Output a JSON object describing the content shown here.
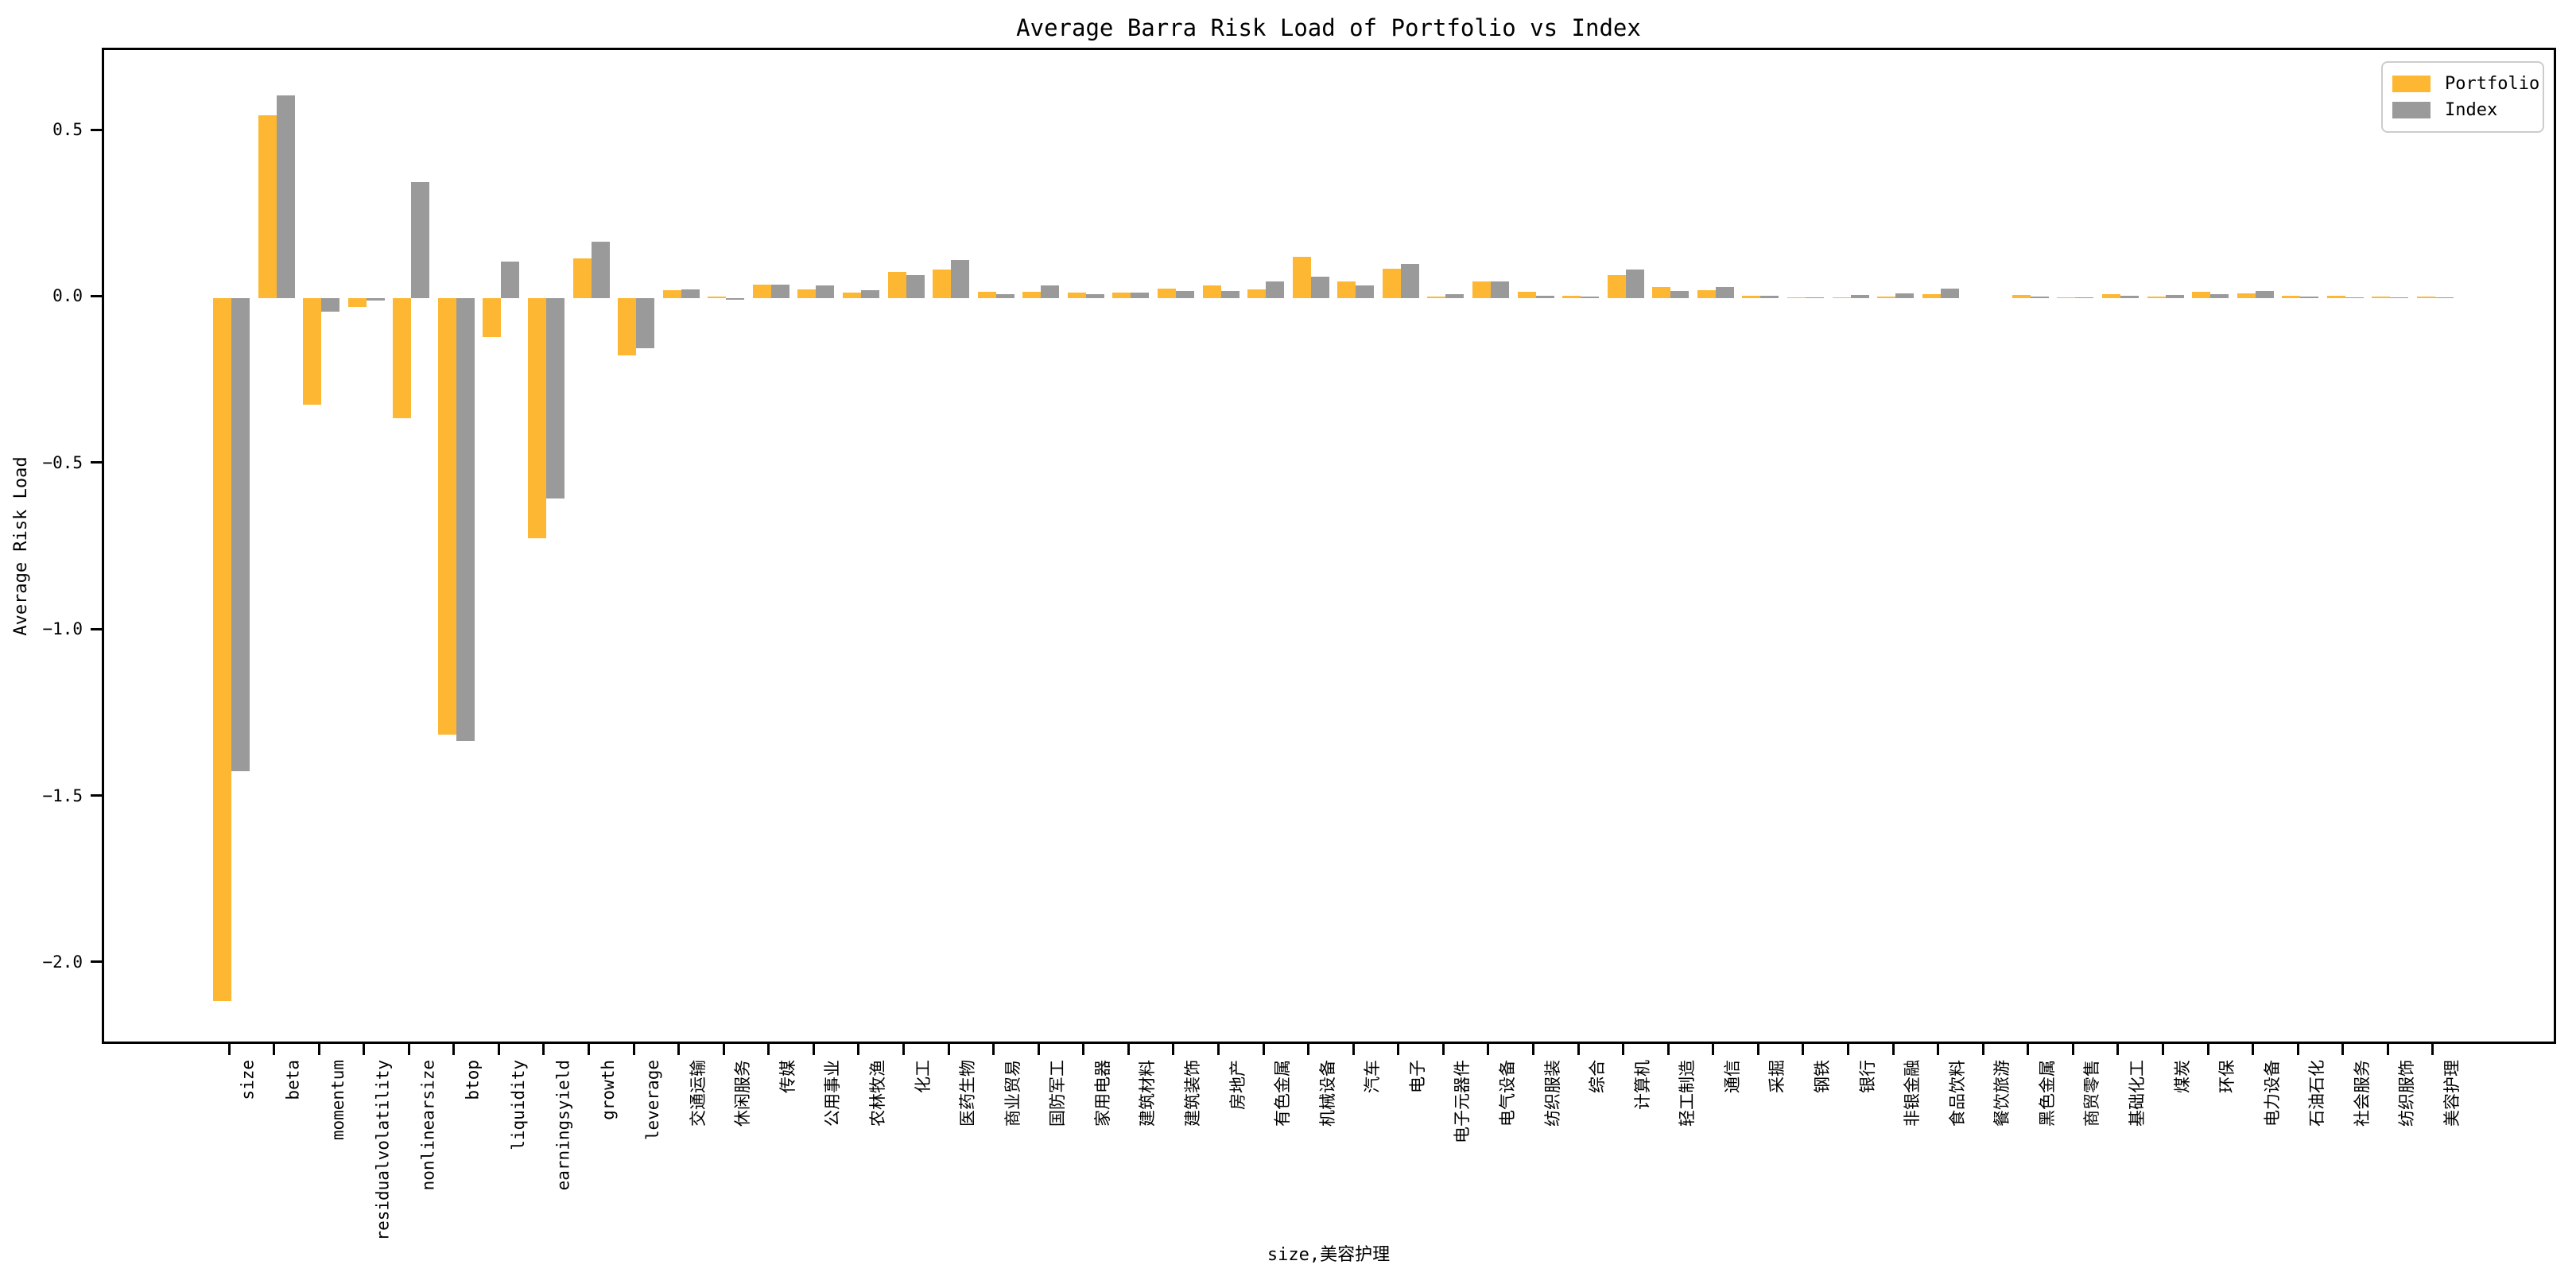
{
  "figure": {
    "title": "Average Barra Risk Load of Portfolio vs Index"
  },
  "axes": {
    "xlabel": "size,美容护理",
    "ylabel": "Average Risk Load"
  },
  "legend": {
    "position": "upper right",
    "items": [
      {
        "label": "Portfolio",
        "color": "#FDB733"
      },
      {
        "label": "Index",
        "color": "#9A9A9A"
      }
    ]
  },
  "chart_data": {
    "type": "bar",
    "title": "Average Barra Risk Load of Portfolio vs Index",
    "xlabel": "size,美容护理",
    "ylabel": "Average Risk Load",
    "grid": false,
    "legend_position": "upper right",
    "ylim": [
      -2.246,
      0.746
    ],
    "yticks": [
      0.5,
      0.0,
      -0.5,
      -1.0,
      -1.5,
      -2.0
    ],
    "ytick_labels": [
      "0.5",
      "0.0",
      "−0.5",
      "−1.0",
      "−1.5",
      "−2.0"
    ],
    "categories": [
      "size",
      "beta",
      "momentum",
      "residualvolatility",
      "nonlinearsize",
      "btop",
      "liquidity",
      "earningsyield",
      "growth",
      "leverage",
      "交通运输",
      "休闲服务",
      "传媒",
      "公用事业",
      "农林牧渔",
      "化工",
      "医药生物",
      "商业贸易",
      "国防军工",
      "家用电器",
      "建筑材料",
      "建筑装饰",
      "房地产",
      "有色金属",
      "机械设备",
      "汽车",
      "电子",
      "电子元器件",
      "电气设备",
      "纺织服装",
      "综合",
      "计算机",
      "轻工制造",
      "通信",
      "采掘",
      "钢铁",
      "银行",
      "非银金融",
      "食品饮料",
      "餐饮旅游",
      "黑色金属",
      "商贸零售",
      "基础化工",
      "煤炭",
      "环保",
      "电力设备",
      "石油石化",
      "社会服务",
      "纺织服饰",
      "美容护理"
    ],
    "series": [
      {
        "name": "Portfolio",
        "color": "#FDB733",
        "values": [
          -2.11,
          0.55,
          -0.32,
          -0.025,
          -0.36,
          -1.31,
          -0.115,
          -0.72,
          0.12,
          -0.17,
          0.026,
          0.006,
          0.042,
          0.028,
          0.018,
          0.08,
          0.088,
          0.02,
          0.02,
          0.018,
          0.018,
          0.03,
          0.038,
          0.028,
          0.125,
          0.052,
          0.09,
          0.006,
          0.052,
          0.02,
          0.008,
          0.07,
          0.035,
          0.026,
          0.008,
          0.002,
          0.003,
          0.006,
          0.012,
          0.0,
          0.01,
          0.003,
          0.012,
          0.006,
          0.019,
          0.015,
          0.007,
          0.009,
          0.006,
          0.005
        ]
      },
      {
        "name": "Index",
        "color": "#9A9A9A",
        "values": [
          -1.42,
          0.61,
          -0.04,
          -0.005,
          0.35,
          -1.33,
          0.11,
          -0.6,
          0.17,
          -0.15,
          0.028,
          -0.004,
          0.041,
          0.038,
          0.024,
          0.07,
          0.115,
          0.013,
          0.038,
          0.014,
          0.017,
          0.023,
          0.023,
          0.052,
          0.065,
          0.04,
          0.103,
          0.012,
          0.05,
          0.009,
          0.006,
          0.088,
          0.022,
          0.034,
          0.008,
          0.002,
          0.01,
          0.016,
          0.03,
          0.0,
          0.005,
          0.002,
          0.008,
          0.01,
          0.012,
          0.023,
          0.006,
          0.003,
          0.002,
          0.002
        ]
      }
    ]
  }
}
